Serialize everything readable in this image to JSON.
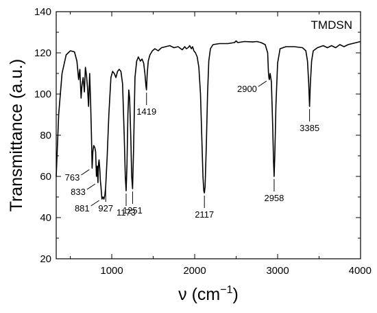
{
  "chart_data": {
    "type": "line",
    "title": "",
    "xlabel": "ν (cm",
    "xlabel_sup": "−1",
    "xlabel_close": ")",
    "ylabel": "Transmittance (a.u.)",
    "xlim": [
      330,
      4000
    ],
    "ylim": [
      20,
      140
    ],
    "x_major_ticks": [
      1000,
      2000,
      3000,
      4000
    ],
    "x_minor_ticks": [
      500,
      1500,
      2500,
      3500
    ],
    "y_major_ticks": [
      20,
      40,
      60,
      80,
      100,
      120,
      140
    ],
    "y_minor_ticks": [
      30,
      50,
      70,
      90,
      110,
      130
    ],
    "legend": "TMDSN",
    "legend_position": "top-right",
    "grid": false,
    "series": [
      {
        "name": "TMDSN",
        "color": "#000000",
        "points": [
          [
            330,
            60
          ],
          [
            360,
            90
          ],
          [
            400,
            110
          ],
          [
            450,
            119
          ],
          [
            500,
            121
          ],
          [
            550,
            120.5
          ],
          [
            580,
            116
          ],
          [
            600,
            107
          ],
          [
            615,
            112
          ],
          [
            630,
            98
          ],
          [
            640,
            104
          ],
          [
            655,
            108
          ],
          [
            670,
            101
          ],
          [
            682,
            113
          ],
          [
            695,
            109
          ],
          [
            708,
            103
          ],
          [
            720,
            94
          ],
          [
            733,
            110
          ],
          [
            745,
            96
          ],
          [
            755,
            80
          ],
          [
            763,
            64
          ],
          [
            772,
            72
          ],
          [
            782,
            75
          ],
          [
            795,
            74
          ],
          [
            805,
            72
          ],
          [
            815,
            60
          ],
          [
            825,
            65
          ],
          [
            833,
            57
          ],
          [
            840,
            66
          ],
          [
            847,
            68
          ],
          [
            855,
            64
          ],
          [
            862,
            58
          ],
          [
            870,
            55
          ],
          [
            881,
            49
          ],
          [
            893,
            50
          ],
          [
            905,
            49
          ],
          [
            917,
            51
          ],
          [
            927,
            55
          ],
          [
            945,
            70
          ],
          [
            965,
            90
          ],
          [
            990,
            108
          ],
          [
            1010,
            111
          ],
          [
            1030,
            110
          ],
          [
            1050,
            108
          ],
          [
            1070,
            111
          ],
          [
            1090,
            112
          ],
          [
            1110,
            111
          ],
          [
            1130,
            105
          ],
          [
            1150,
            80
          ],
          [
            1163,
            60
          ],
          [
            1173,
            53
          ],
          [
            1183,
            65
          ],
          [
            1195,
            90
          ],
          [
            1205,
            102
          ],
          [
            1215,
            98
          ],
          [
            1230,
            78
          ],
          [
            1240,
            60
          ],
          [
            1251,
            54
          ],
          [
            1262,
            72
          ],
          [
            1280,
            108
          ],
          [
            1300,
            116
          ],
          [
            1320,
            118
          ],
          [
            1345,
            116
          ],
          [
            1365,
            117
          ],
          [
            1385,
            115
          ],
          [
            1400,
            110
          ],
          [
            1412,
            104
          ],
          [
            1419,
            102
          ],
          [
            1428,
            110
          ],
          [
            1440,
            116
          ],
          [
            1460,
            119
          ],
          [
            1490,
            121
          ],
          [
            1520,
            122
          ],
          [
            1560,
            121
          ],
          [
            1600,
            122.5
          ],
          [
            1650,
            123
          ],
          [
            1700,
            123.5
          ],
          [
            1750,
            122.5
          ],
          [
            1800,
            123
          ],
          [
            1850,
            121.5
          ],
          [
            1880,
            123
          ],
          [
            1900,
            122
          ],
          [
            1920,
            122.5
          ],
          [
            1940,
            123.5
          ],
          [
            1960,
            122
          ],
          [
            1975,
            123
          ],
          [
            1990,
            121
          ],
          [
            2010,
            120
          ],
          [
            2030,
            118
          ],
          [
            2050,
            113
          ],
          [
            2070,
            100
          ],
          [
            2085,
            80
          ],
          [
            2100,
            60
          ],
          [
            2110,
            53
          ],
          [
            2117,
            52
          ],
          [
            2125,
            55
          ],
          [
            2140,
            75
          ],
          [
            2155,
            100
          ],
          [
            2170,
            116
          ],
          [
            2190,
            122
          ],
          [
            2220,
            124
          ],
          [
            2300,
            124.5
          ],
          [
            2400,
            124.5
          ],
          [
            2480,
            125
          ],
          [
            2500,
            125.8
          ],
          [
            2520,
            125
          ],
          [
            2600,
            125.5
          ],
          [
            2700,
            125.3
          ],
          [
            2750,
            125.5
          ],
          [
            2800,
            125
          ],
          [
            2850,
            124
          ],
          [
            2880,
            120
          ],
          [
            2890,
            110
          ],
          [
            2895,
            108
          ],
          [
            2900,
            107
          ],
          [
            2910,
            110
          ],
          [
            2925,
            106
          ],
          [
            2940,
            85
          ],
          [
            2950,
            68
          ],
          [
            2958,
            60
          ],
          [
            2966,
            70
          ],
          [
            2980,
            95
          ],
          [
            3000,
            115
          ],
          [
            3030,
            122
          ],
          [
            3100,
            123
          ],
          [
            3200,
            123
          ],
          [
            3300,
            122.5
          ],
          [
            3340,
            121
          ],
          [
            3360,
            116
          ],
          [
            3375,
            105
          ],
          [
            3385,
            94
          ],
          [
            3395,
            105
          ],
          [
            3410,
            116
          ],
          [
            3430,
            121
          ],
          [
            3480,
            122.5
          ],
          [
            3550,
            123.5
          ],
          [
            3600,
            122.5
          ],
          [
            3650,
            123.5
          ],
          [
            3700,
            122.5
          ],
          [
            3750,
            124
          ],
          [
            3800,
            123
          ],
          [
            3850,
            124
          ],
          [
            3900,
            124.5
          ],
          [
            3950,
            125
          ],
          [
            4000,
            125.5
          ]
        ]
      }
    ],
    "annotations": [
      {
        "label": "763",
        "peak_x": 763,
        "peak_y": 64,
        "anchor": "left"
      },
      {
        "label": "833",
        "peak_x": 833,
        "peak_y": 57,
        "anchor": "left"
      },
      {
        "label": "881",
        "peak_x": 881,
        "peak_y": 49,
        "anchor": "left"
      },
      {
        "label": "927",
        "peak_x": 927,
        "peak_y": 55,
        "anchor": "below"
      },
      {
        "label": "1173",
        "peak_x": 1173,
        "peak_y": 53,
        "anchor": "below"
      },
      {
        "label": "1251",
        "peak_x": 1251,
        "peak_y": 54,
        "anchor": "below"
      },
      {
        "label": "1419",
        "peak_x": 1419,
        "peak_y": 102,
        "anchor": "below"
      },
      {
        "label": "2117",
        "peak_x": 2117,
        "peak_y": 52,
        "anchor": "below"
      },
      {
        "label": "2900",
        "peak_x": 2900,
        "peak_y": 107,
        "anchor": "left"
      },
      {
        "label": "2958",
        "peak_x": 2958,
        "peak_y": 60,
        "anchor": "below"
      },
      {
        "label": "3385",
        "peak_x": 3385,
        "peak_y": 94,
        "anchor": "below"
      }
    ]
  }
}
